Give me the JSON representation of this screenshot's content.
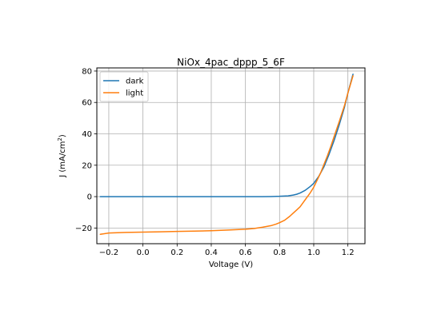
{
  "chart_data": {
    "type": "line",
    "title": "NiOx_4pac_dppp_5_6F",
    "xlabel": "Voltage (V)",
    "ylabel_main": "J (mA/cm",
    "ylabel_sup": "2",
    "ylabel_close": ")",
    "xlim": [
      -0.27,
      1.3
    ],
    "ylim": [
      -30,
      82
    ],
    "xticks": [
      -0.2,
      0.0,
      0.2,
      0.4,
      0.6,
      0.8,
      1.0,
      1.2
    ],
    "xtick_labels": [
      "−0.2",
      "0.0",
      "0.2",
      "0.4",
      "0.6",
      "0.8",
      "1.0",
      "1.2"
    ],
    "yticks": [
      -20,
      0,
      20,
      40,
      60,
      80
    ],
    "ytick_labels": [
      "−20",
      "0",
      "20",
      "40",
      "60",
      "80"
    ],
    "grid": true,
    "legend_position": "top-left",
    "series": [
      {
        "name": "dark",
        "color": "#1f77b4",
        "x": [
          -0.25,
          -0.1,
          0.0,
          0.2,
          0.4,
          0.6,
          0.7,
          0.75,
          0.8,
          0.85,
          0.88,
          0.9,
          0.92,
          0.95,
          0.98,
          1.0,
          1.03,
          1.06,
          1.09,
          1.12,
          1.15,
          1.18,
          1.2,
          1.23
        ],
        "y": [
          0,
          0,
          0,
          0,
          0,
          0,
          0,
          0.05,
          0.2,
          0.5,
          1.0,
          1.5,
          2.3,
          4.0,
          6.5,
          8.5,
          13,
          19,
          27,
          36,
          46,
          57,
          66,
          78
        ]
      },
      {
        "name": "light",
        "color": "#ff7f0e",
        "x": [
          -0.25,
          -0.2,
          -0.1,
          0.0,
          0.1,
          0.2,
          0.3,
          0.4,
          0.5,
          0.6,
          0.65,
          0.7,
          0.75,
          0.78,
          0.8,
          0.83,
          0.86,
          0.88,
          0.9,
          0.92,
          0.94,
          0.96,
          0.98,
          1.0,
          1.02,
          1.04,
          1.06,
          1.08,
          1.1,
          1.12,
          1.15,
          1.18,
          1.2,
          1.23
        ],
        "y": [
          -24,
          -23.2,
          -22.8,
          -22.6,
          -22.4,
          -22.2,
          -22.0,
          -21.7,
          -21.3,
          -20.8,
          -20.3,
          -19.5,
          -18.5,
          -17.5,
          -16.6,
          -15,
          -12.5,
          -10.5,
          -8.5,
          -6.5,
          -3.5,
          -0.5,
          2.5,
          6,
          10.5,
          15,
          20.5,
          26,
          32,
          38.5,
          48,
          58,
          66,
          77
        ]
      }
    ]
  }
}
